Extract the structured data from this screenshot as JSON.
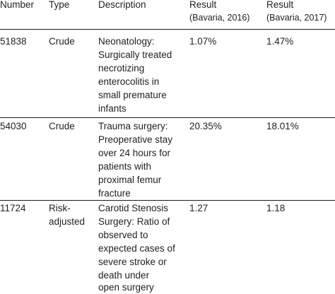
{
  "header": {
    "number": "Number",
    "type": "Type",
    "description": "Description",
    "result_2016": [
      "Result",
      "(Bavaria, 2016)"
    ],
    "result_2017": [
      "Result",
      "(Bavaria, 2017)"
    ]
  },
  "rows": [
    {
      "number": "51838",
      "type": [
        "Crude"
      ],
      "description": [
        "Neonatology:",
        "Surgically treated",
        "necrotizing",
        "enterocolitis in",
        "small premature",
        "infants"
      ],
      "result_2016": "1.07%",
      "result_2017": "1.47%"
    },
    {
      "number": "54030",
      "type": [
        "Crude"
      ],
      "description": [
        "Trauma surgery:",
        "Preoperative stay",
        "over 24 hours for",
        "patients with",
        "proximal femur",
        "fracture"
      ],
      "result_2016": "20.35%",
      "result_2017": "18.01%"
    },
    {
      "number": "11724",
      "type": [
        "Risk-",
        "adjusted"
      ],
      "description": [
        "Carotid Stenosis",
        "Surgery: Ratio of",
        "observed to",
        "expected cases of",
        "severe stroke or",
        "death under",
        "open surgery"
      ],
      "result_2016": "1.27",
      "result_2017": "1.18"
    }
  ]
}
